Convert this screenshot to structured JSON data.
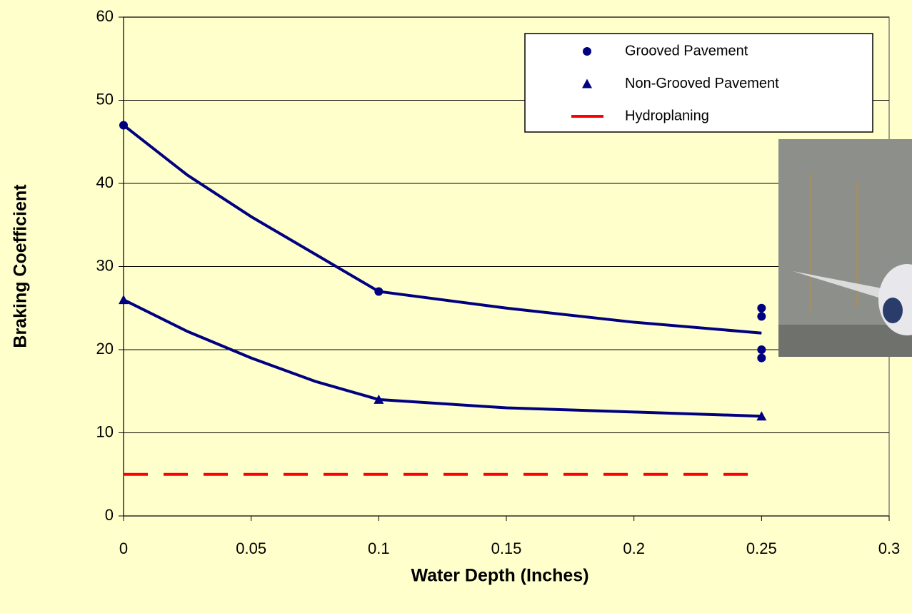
{
  "chart_data": {
    "type": "scatter",
    "xlabel": "Water Depth (Inches)",
    "ylabel": "Braking Coefficient",
    "xlim": [
      0,
      0.3
    ],
    "xticks": [
      0,
      0.05,
      0.1,
      0.15,
      0.2,
      0.25,
      0.3
    ],
    "ylim": [
      0,
      60
    ],
    "yticks": [
      0,
      10,
      20,
      30,
      40,
      50,
      60
    ],
    "grid": true,
    "legend": "upper right",
    "series": [
      {
        "name": "Grooved Pavement",
        "color": "#000080",
        "marker": "circle",
        "x": [
          0,
          0.1,
          0.25,
          0.25,
          0.25,
          0.25
        ],
        "values": [
          47,
          27,
          25,
          24,
          20,
          19
        ]
      },
      {
        "name": "Non-Grooved Pavement",
        "color": "#000080",
        "marker": "triangle",
        "x": [
          0,
          0.1,
          0.25
        ],
        "values": [
          26,
          14,
          12
        ]
      },
      {
        "name": "Hydroplaning",
        "color": "#ff0000",
        "marker": "dash",
        "x": [
          0,
          0.25
        ],
        "values": [
          5,
          5
        ]
      }
    ],
    "trend_lines": [
      {
        "color": "#000080",
        "x": [
          0,
          0.025,
          0.05,
          0.075,
          0.1,
          0.15,
          0.2,
          0.25
        ],
        "values": [
          47,
          41,
          36,
          31.5,
          27,
          25,
          23.3,
          22
        ]
      },
      {
        "color": "#000080",
        "x": [
          0,
          0.025,
          0.05,
          0.075,
          0.1,
          0.15,
          0.2,
          0.25
        ],
        "values": [
          26,
          22.2,
          19,
          16.2,
          14,
          13,
          12.5,
          12
        ]
      }
    ]
  }
}
